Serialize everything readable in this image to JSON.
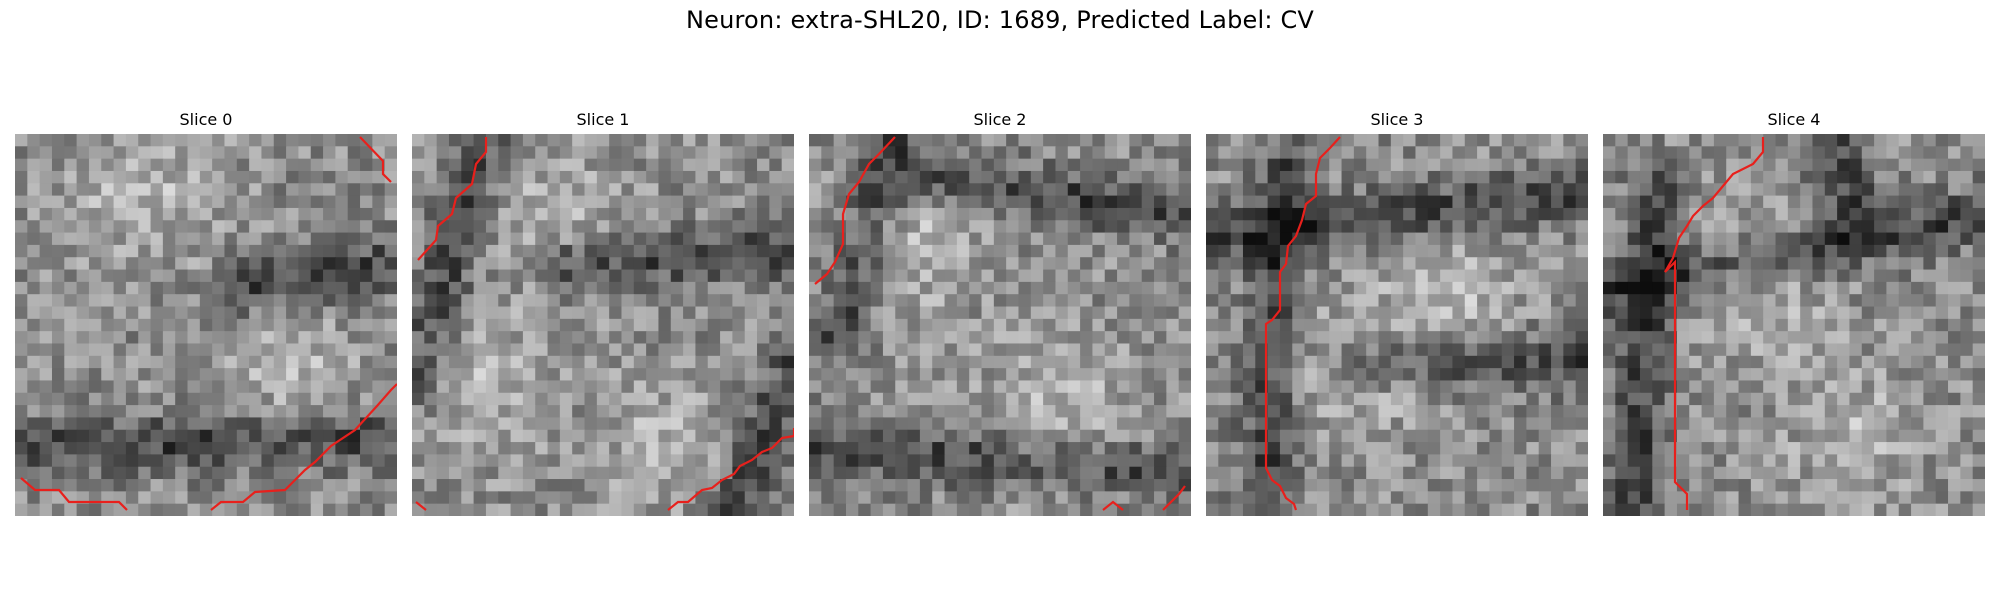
{
  "figure": {
    "title": "Neuron: extra-SHL20, ID: 1689, Predicted Label: CV"
  },
  "panels": [
    {
      "label": "Slice 0"
    },
    {
      "label": "Slice 1"
    },
    {
      "label": "Slice 2"
    },
    {
      "label": "Slice 3"
    },
    {
      "label": "Slice 4"
    }
  ],
  "colors": {
    "contour": "#e8201c",
    "background": "#ffffff"
  }
}
